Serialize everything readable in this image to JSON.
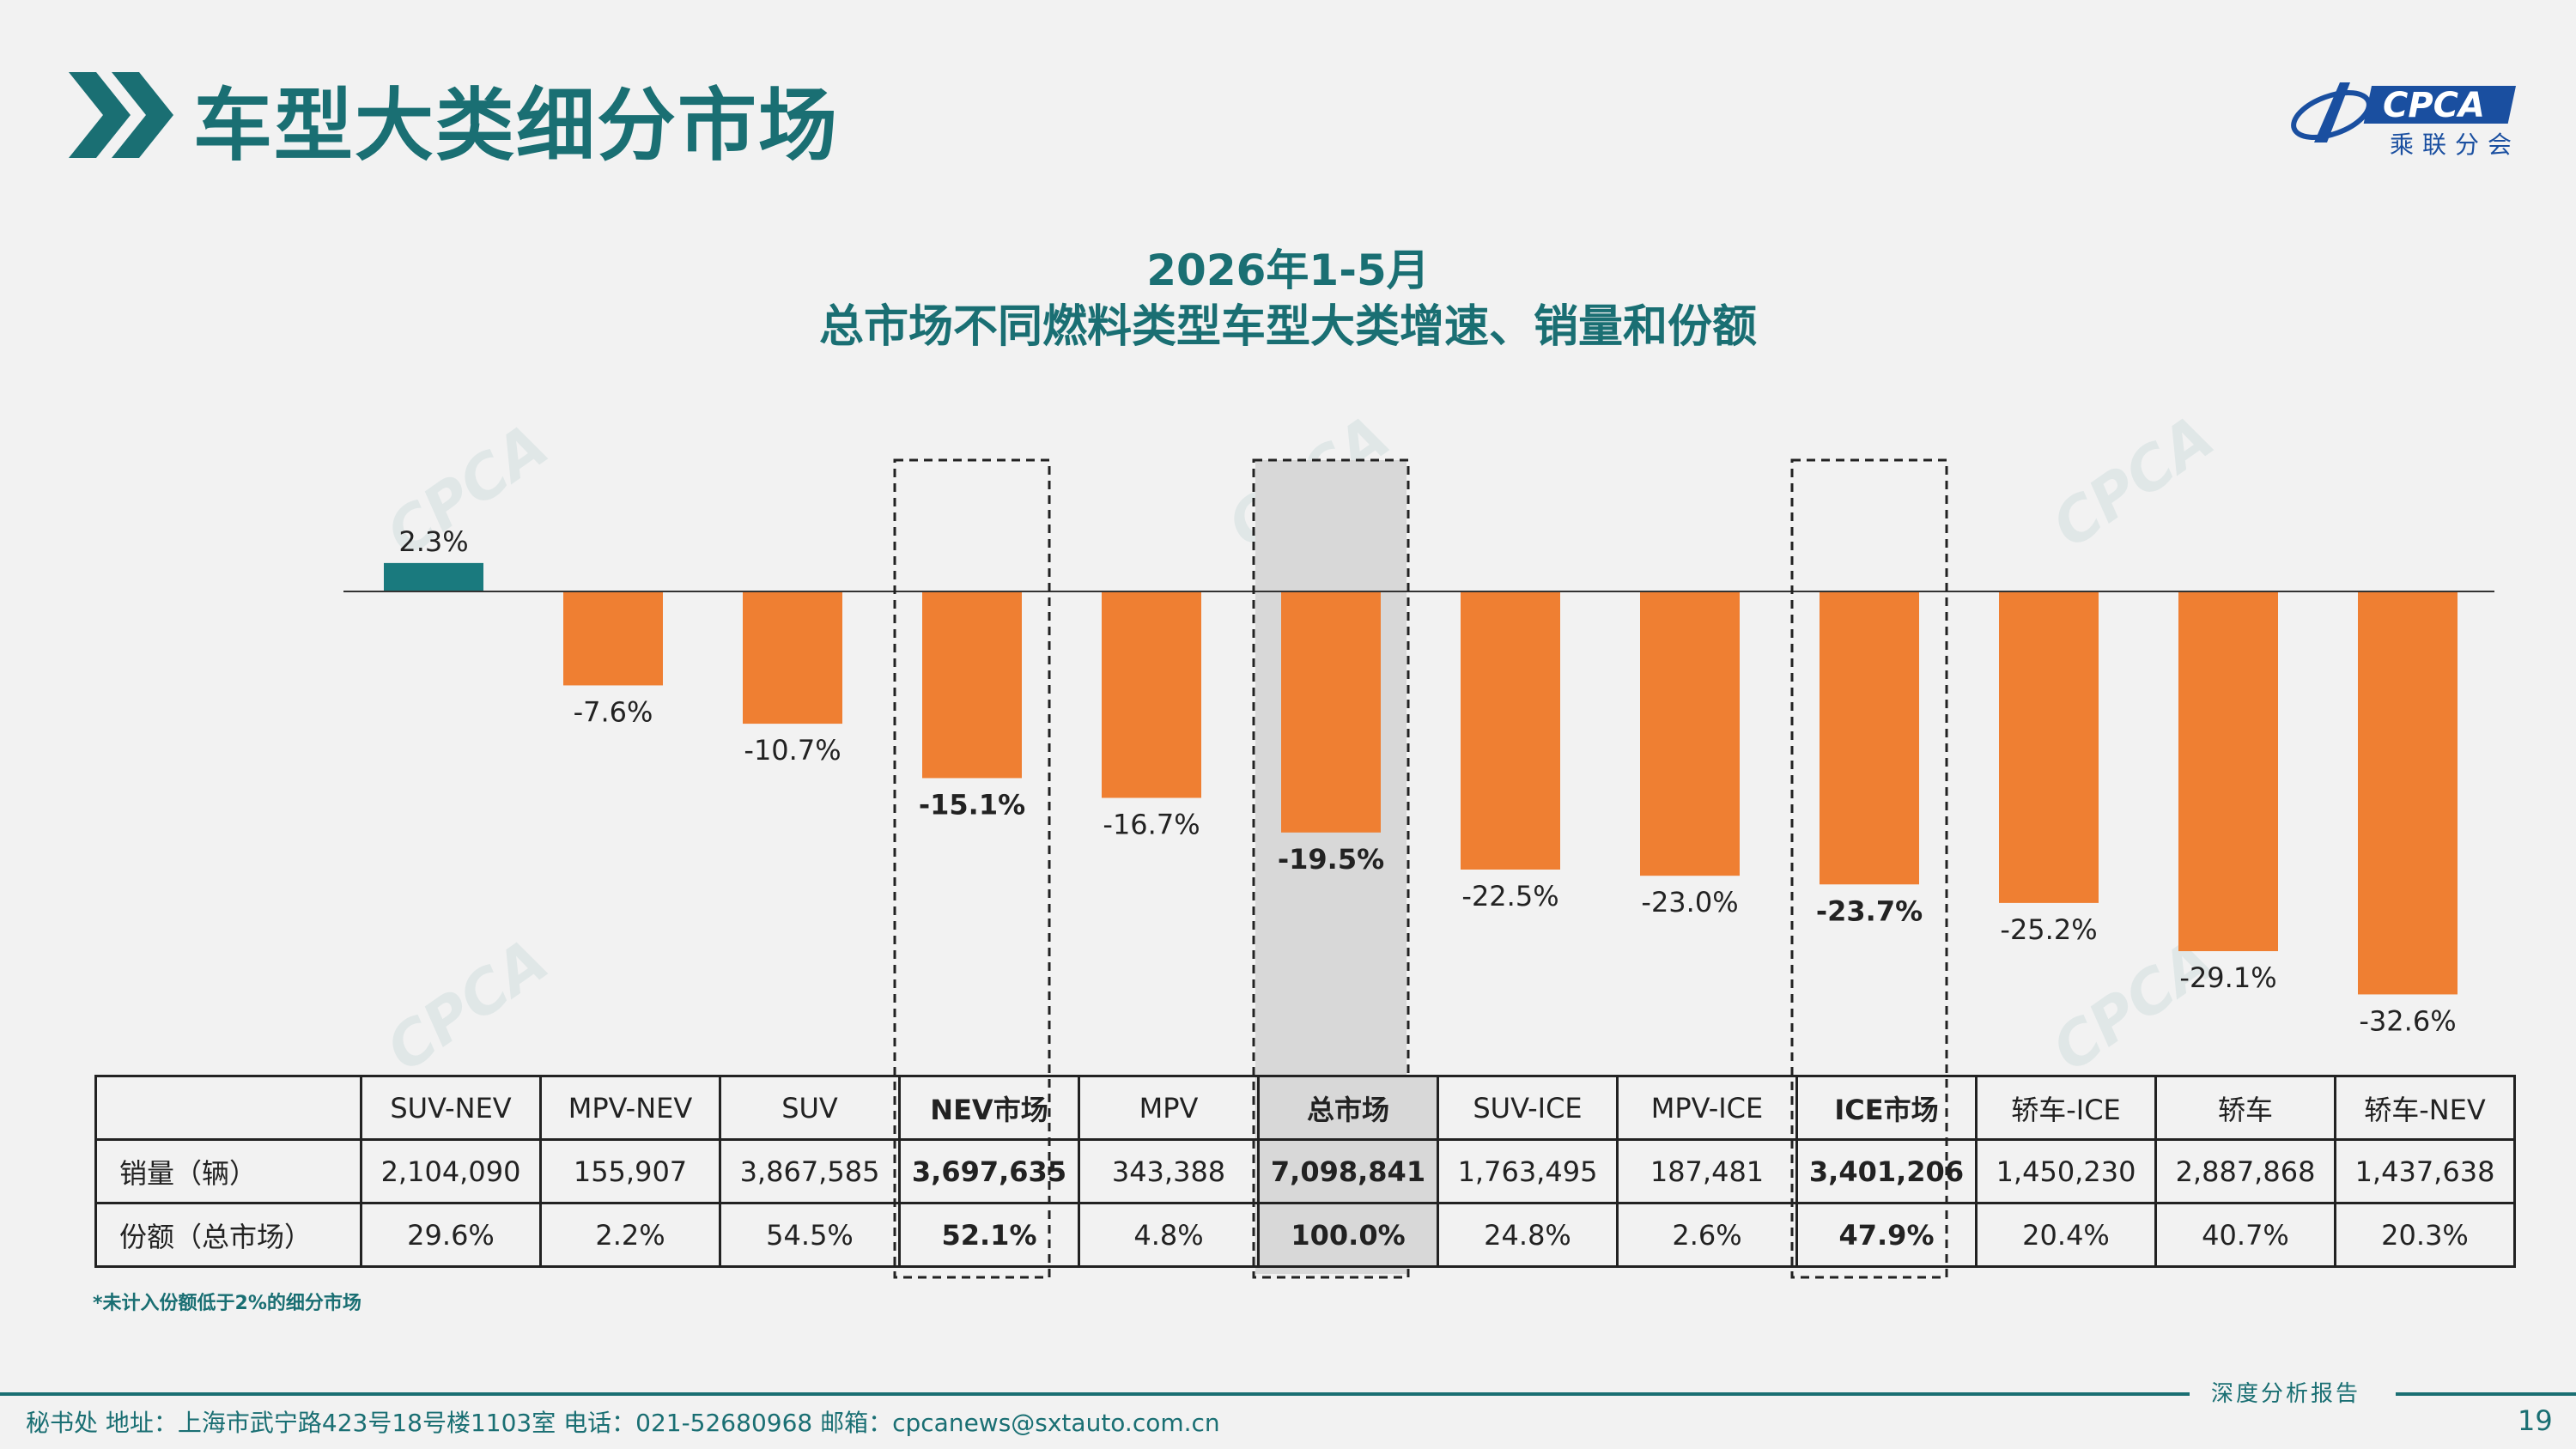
{
  "page": {
    "title": "车型大类细分市场",
    "page_number": "19",
    "footnote": "*未计入份额低于2%的细分市场",
    "footer_tag": "深度分析报告",
    "footer_info": "秘书处   地址：上海市武宁路423号18号楼1103室  电话：021-52680968   邮箱：cpcanews@sxtauto.com.cn",
    "logo_text": "CPCA",
    "logo_sub": "乘联分会",
    "watermark": "CPCA",
    "colors": {
      "accent": "#1a6f73",
      "positive_bar": "#1a7a7e",
      "negative_bar": "#ef7f32",
      "highlight_fill": "#d8d8d8"
    }
  },
  "chart_data": {
    "type": "bar",
    "title": "2026年1-5月",
    "subtitle": "总市场不同燃料类型车型大类增速、销量和份额",
    "categories": [
      "SUV-NEV",
      "MPV-NEV",
      "SUV",
      "NEV市场",
      "MPV",
      "总市场",
      "SUV-ICE",
      "MPV-ICE",
      "ICE市场",
      "轿车-ICE",
      "轿车",
      "轿车-NEV"
    ],
    "values": [
      2.3,
      -7.6,
      -10.7,
      -15.1,
      -16.7,
      -19.5,
      -22.5,
      -23.0,
      -23.7,
      -25.2,
      -29.1,
      -32.6
    ],
    "value_labels": [
      "2.3%",
      "-7.6%",
      "-10.7%",
      "-15.1%",
      "-16.7%",
      "-19.5%",
      "-22.5%",
      "-23.0%",
      "-23.7%",
      "-25.2%",
      "-29.1%",
      "-32.6%"
    ],
    "bold_categories": [
      3,
      5,
      8
    ],
    "boxed_categories": [
      3,
      5,
      8
    ],
    "shaded_category": 5,
    "ylim": [
      -35,
      5
    ],
    "grid": false,
    "legend": "none"
  },
  "table": {
    "row_headers": [
      "销量（辆）",
      "份额（总市场）"
    ],
    "sales": [
      "2,104,090",
      "155,907",
      "3,867,585",
      "3,697,635",
      "343,388",
      "7,098,841",
      "1,763,495",
      "187,481",
      "3,401,206",
      "1,450,230",
      "2,887,868",
      "1,437,638"
    ],
    "share": [
      "29.6%",
      "2.2%",
      "54.5%",
      "52.1%",
      "4.8%",
      "100.0%",
      "24.8%",
      "2.6%",
      "47.9%",
      "20.4%",
      "40.7%",
      "20.3%"
    ]
  }
}
